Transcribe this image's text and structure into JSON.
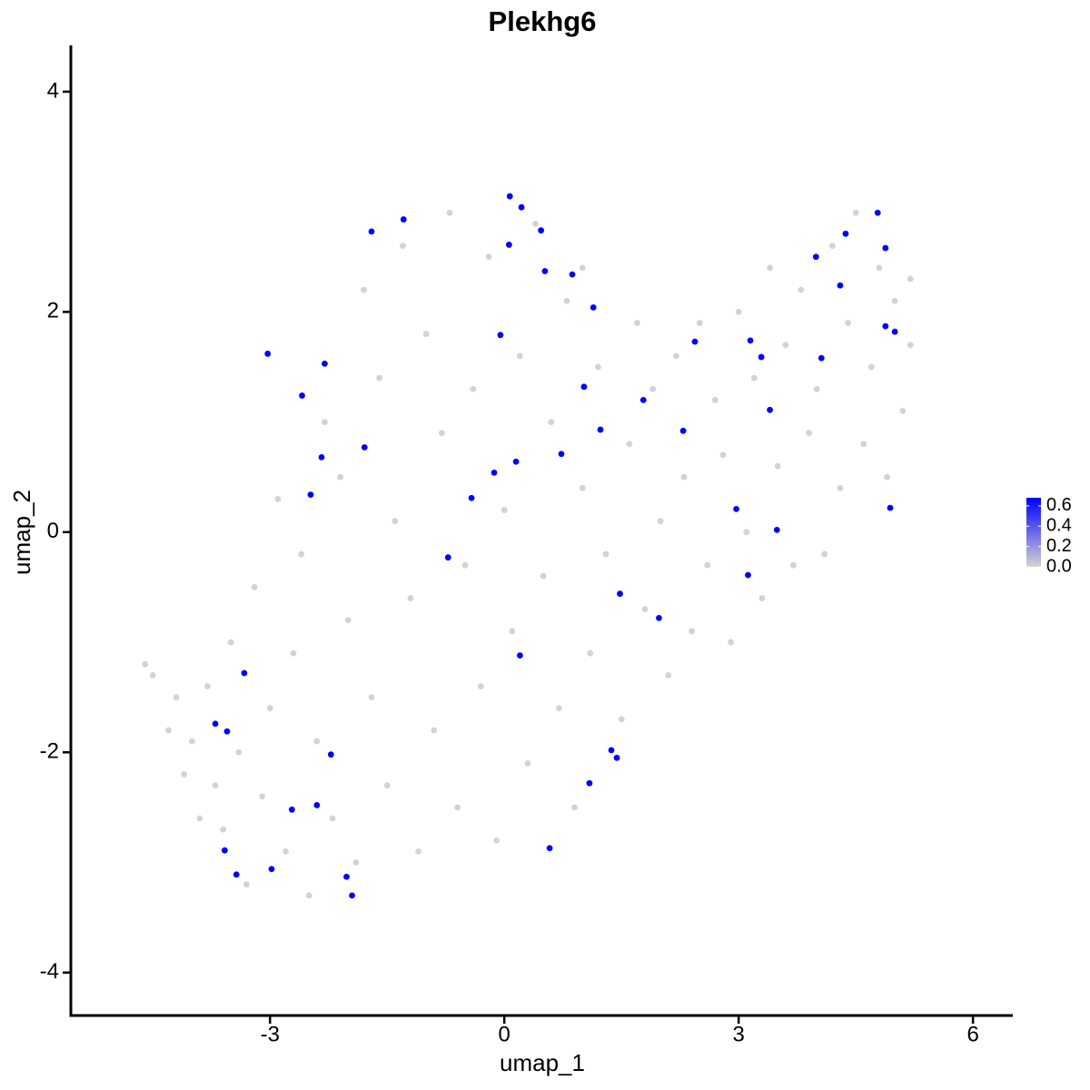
{
  "chart_data": {
    "type": "scatter",
    "title": "Plekhg6",
    "x_label": "umap_1",
    "y_label": "umap_2",
    "xlim": [
      -5.55,
      6.51
    ],
    "ylim": [
      -4.39,
      4.42
    ],
    "xticks": [
      -3,
      0,
      3,
      6
    ],
    "yticks": [
      -4,
      -2,
      0,
      2,
      4
    ],
    "x": [
      -4.6,
      -4.5,
      -4.3,
      -4.2,
      -4.1,
      -4.0,
      -3.9,
      -3.8,
      -3.7,
      -3.6,
      -3.5,
      -3.4,
      -3.3,
      -3.2,
      -3.1,
      -3.0,
      -2.9,
      -2.8,
      -2.7,
      -2.6,
      -2.5,
      -2.4,
      -2.3,
      -2.2,
      -2.1,
      -2.0,
      -1.9,
      -1.8,
      -1.7,
      -1.6,
      -1.5,
      -1.4,
      -1.3,
      -1.2,
      -1.1,
      -1.0,
      -0.9,
      -0.8,
      -0.7,
      -0.6,
      -0.5,
      -0.4,
      -0.3,
      -0.2,
      -0.1,
      0.0,
      0.1,
      0.2,
      0.3,
      0.4,
      0.5,
      0.6,
      0.7,
      0.8,
      0.9,
      1.0,
      1.1,
      1.2,
      1.3,
      1.0,
      1.5,
      1.6,
      1.7,
      1.8,
      1.9,
      2.0,
      2.1,
      2.2,
      2.3,
      2.4,
      2.5,
      2.6,
      2.7,
      2.8,
      2.9,
      3.0,
      3.1,
      3.2,
      3.3,
      3.4,
      3.5,
      3.6,
      3.7,
      3.8,
      3.9,
      4.0,
      4.1,
      4.2,
      4.3,
      4.4,
      4.5,
      4.6,
      4.7,
      4.8,
      4.9,
      5.0,
      5.1,
      5.2,
      5.2,
      0.07,
      0.22,
      -1.7,
      -1.29,
      0.47,
      0.06,
      0.52,
      0.87,
      1.14,
      -0.05,
      -3.03,
      -2.3,
      -2.59,
      1.02,
      1.78,
      1.23,
      2.29,
      2.44,
      3.15,
      3.29,
      3.4,
      3.99,
      4.37,
      4.78,
      4.88,
      4.3,
      4.06,
      4.88,
      5.0,
      -1.79,
      -2.34,
      0.73,
      0.15,
      -0.13,
      -0.42,
      -2.48,
      -0.72,
      2.97,
      3.49,
      4.94,
      3.12,
      1.48,
      1.98,
      0.2,
      -3.33,
      -3.7,
      -3.55,
      -2.22,
      1.37,
      1.44,
      1.09,
      -2.72,
      -2.4,
      0.58,
      -3.58,
      -2.98,
      -3.43,
      -2.02,
      -1.95
    ],
    "y": [
      -1.2,
      -1.3,
      -1.8,
      -1.5,
      -2.2,
      -1.9,
      -2.6,
      -1.4,
      -2.3,
      -2.7,
      -1.0,
      -2.0,
      -3.2,
      -0.5,
      -2.4,
      -1.6,
      0.3,
      -2.9,
      -1.1,
      -0.2,
      -3.3,
      -1.9,
      1.0,
      -2.6,
      0.5,
      -0.8,
      -3.0,
      2.2,
      -1.5,
      1.4,
      -2.3,
      0.1,
      2.6,
      -0.6,
      -2.9,
      1.8,
      -1.8,
      0.9,
      2.9,
      -2.5,
      -0.3,
      1.3,
      -1.4,
      2.5,
      -2.8,
      0.2,
      -0.9,
      1.6,
      -2.1,
      2.8,
      -0.4,
      1.0,
      -1.6,
      2.1,
      -2.5,
      0.4,
      -1.1,
      1.5,
      -0.2,
      2.4,
      -1.7,
      0.8,
      1.9,
      -0.7,
      1.3,
      0.1,
      -1.3,
      1.6,
      0.5,
      -0.9,
      1.9,
      -0.3,
      1.2,
      0.7,
      -1.0,
      2.0,
      0.0,
      1.4,
      -0.6,
      2.4,
      0.6,
      1.7,
      -0.3,
      2.2,
      0.9,
      1.3,
      -0.2,
      2.6,
      0.4,
      1.9,
      2.9,
      0.8,
      1.5,
      2.4,
      0.5,
      2.1,
      1.1,
      2.3,
      1.7,
      3.05,
      2.95,
      2.73,
      2.84,
      2.74,
      2.61,
      2.37,
      2.34,
      2.04,
      1.79,
      1.62,
      1.53,
      1.24,
      1.32,
      1.2,
      0.93,
      0.92,
      1.73,
      1.74,
      1.59,
      1.11,
      2.5,
      2.71,
      2.9,
      2.58,
      2.24,
      1.58,
      1.87,
      1.82,
      0.77,
      0.68,
      0.71,
      0.64,
      0.54,
      0.31,
      0.34,
      -0.23,
      0.21,
      0.02,
      0.22,
      -0.39,
      -0.56,
      -0.78,
      -1.12,
      -1.28,
      -1.74,
      -1.81,
      -2.02,
      -1.98,
      -2.05,
      -2.28,
      -2.52,
      -2.48,
      -2.87,
      -2.89,
      -3.06,
      -3.11,
      -3.13,
      -3.3
    ],
    "values": [
      0,
      0,
      0,
      0,
      0,
      0,
      0,
      0,
      0,
      0,
      0,
      0,
      0,
      0,
      0,
      0,
      0,
      0,
      0,
      0,
      0,
      0,
      0,
      0,
      0,
      0,
      0,
      0,
      0,
      0,
      0,
      0,
      0,
      0,
      0,
      0,
      0,
      0,
      0,
      0,
      0,
      0,
      0,
      0,
      0,
      0,
      0,
      0,
      0,
      0,
      0,
      0,
      0,
      0,
      0,
      0,
      0,
      0,
      0,
      0,
      0,
      0,
      0,
      0,
      0,
      0,
      0,
      0,
      0,
      0,
      0,
      0,
      0,
      0,
      0,
      0,
      0,
      0,
      0,
      0,
      0,
      0,
      0,
      0,
      0,
      0,
      0,
      0,
      0,
      0,
      0,
      0,
      0,
      0,
      0,
      0,
      0,
      0,
      0,
      0.68,
      0.68,
      0.68,
      0.68,
      0.68,
      0.68,
      0.68,
      0.68,
      0.68,
      0.68,
      0.68,
      0.68,
      0.68,
      0.68,
      0.68,
      0.68,
      0.68,
      0.68,
      0.68,
      0.68,
      0.68,
      0.68,
      0.68,
      0.68,
      0.68,
      0.68,
      0.68,
      0.68,
      0.68,
      0.68,
      0.68,
      0.68,
      0.68,
      0.68,
      0.68,
      0.68,
      0.68,
      0.68,
      0.68,
      0.68,
      0.68,
      0.68,
      0.68,
      0.68,
      0.68,
      0.68,
      0.68,
      0.68,
      0.68,
      0.68,
      0.68,
      0.68,
      0.68,
      0.68,
      0.68,
      0.68,
      0.68,
      0.68,
      0.68
    ],
    "colorbar": {
      "lim": [
        0,
        0.68
      ],
      "ticks": [
        {
          "value": 0,
          "label": "0.0"
        },
        0.2,
        0.4,
        0.6
      ],
      "low_color": "#d3d3d3",
      "high_color": "#0000ff"
    }
  }
}
